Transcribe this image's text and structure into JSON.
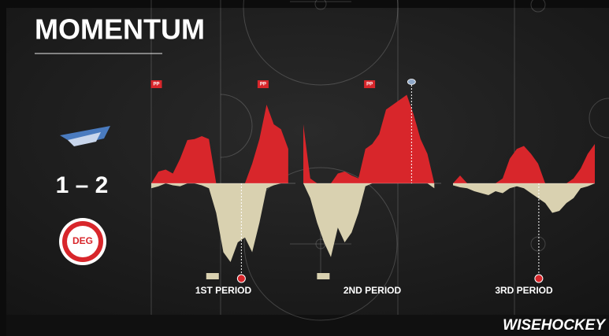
{
  "chart_data": {
    "type": "momentum",
    "title": "MOMENTUM",
    "score": "1 – 2",
    "away_logo_text": "DEG",
    "brand": "WISEHOCKEY",
    "period_labels": [
      "1ST PERIOD",
      "2ND PERIOD",
      "3RD PERIOD"
    ],
    "x": [
      0,
      1,
      2,
      3,
      4,
      5,
      6,
      7,
      8,
      9,
      10,
      11,
      12,
      13,
      14,
      15,
      16,
      17,
      18,
      19,
      20,
      21,
      22,
      23,
      24,
      25,
      26,
      27,
      28,
      29,
      30,
      31,
      32,
      33,
      34,
      35,
      36,
      37,
      38,
      39,
      40,
      41,
      42,
      43,
      44,
      45,
      46,
      47,
      48,
      49,
      50,
      51,
      52,
      53,
      54,
      55,
      56,
      57,
      58,
      59,
      60
    ],
    "xlim": [
      0,
      60
    ],
    "ylim": [
      -100,
      100
    ],
    "series": [
      {
        "color": "#d8262b",
        "values": [
          0,
          12,
          14,
          10,
          25,
          44,
          45,
          48,
          45,
          0,
          0,
          0,
          0,
          0,
          20,
          45,
          80,
          60,
          55,
          35,
          60,
          5,
          0,
          0,
          0,
          10,
          12,
          8,
          5,
          35,
          40,
          50,
          75,
          80,
          85,
          90,
          70,
          45,
          30,
          0,
          0,
          8,
          0,
          0,
          0,
          0,
          0,
          5,
          25,
          35,
          38,
          30,
          20,
          0,
          0,
          0,
          0,
          5,
          15,
          30,
          40
        ]
      },
      {
        "color": "#d9d1b0",
        "values": [
          -5,
          -3,
          0,
          -2,
          -3,
          0,
          0,
          -2,
          -5,
          -30,
          -70,
          -80,
          -60,
          -55,
          -70,
          -40,
          -5,
          -2,
          0,
          0,
          0,
          -15,
          -40,
          -60,
          -75,
          -45,
          -60,
          -50,
          -30,
          -3,
          0,
          0,
          0,
          0,
          0,
          0,
          0,
          0,
          0,
          -5,
          -2,
          -4,
          -5,
          -8,
          -10,
          -12,
          -8,
          -10,
          -5,
          -3,
          -5,
          -10,
          -15,
          -20,
          -30,
          -28,
          -20,
          -15,
          -5,
          -3,
          0
        ]
      }
    ],
    "power_plays": [
      {
        "x": 0.6,
        "label": "PP"
      },
      {
        "x": 15.4,
        "label": "PP"
      },
      {
        "x": 29.5,
        "label": "PP"
      }
    ],
    "away_power_plays": [
      8.5,
      22.9
    ],
    "home_goals": [
      35.7
    ],
    "away_goals": [
      12.5,
      52.1
    ]
  }
}
